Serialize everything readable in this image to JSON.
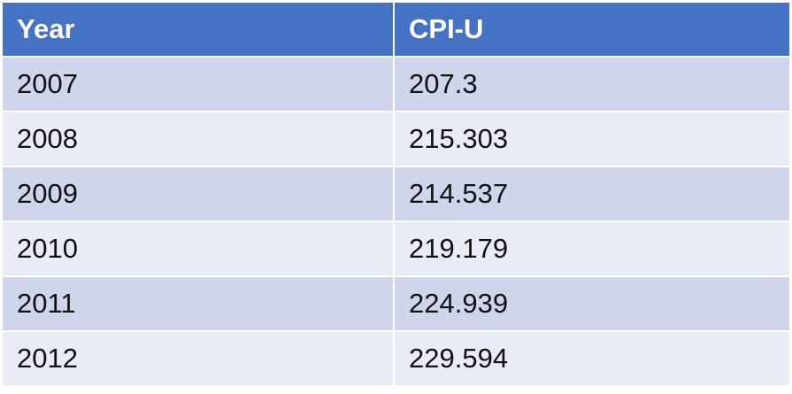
{
  "table": {
    "headers": [
      "Year",
      "CPI-U"
    ],
    "rows": [
      [
        "2007",
        "207.3"
      ],
      [
        "2008",
        "215.303"
      ],
      [
        "2009",
        "214.537"
      ],
      [
        "2010",
        "219.179"
      ],
      [
        "2011",
        "224.939"
      ],
      [
        "2012",
        "229.594"
      ]
    ]
  },
  "colors": {
    "header_bg": "#4472c4",
    "header_text": "#ffffff",
    "band_dark": "#cfd5ea",
    "band_light": "#e9ebf5"
  }
}
